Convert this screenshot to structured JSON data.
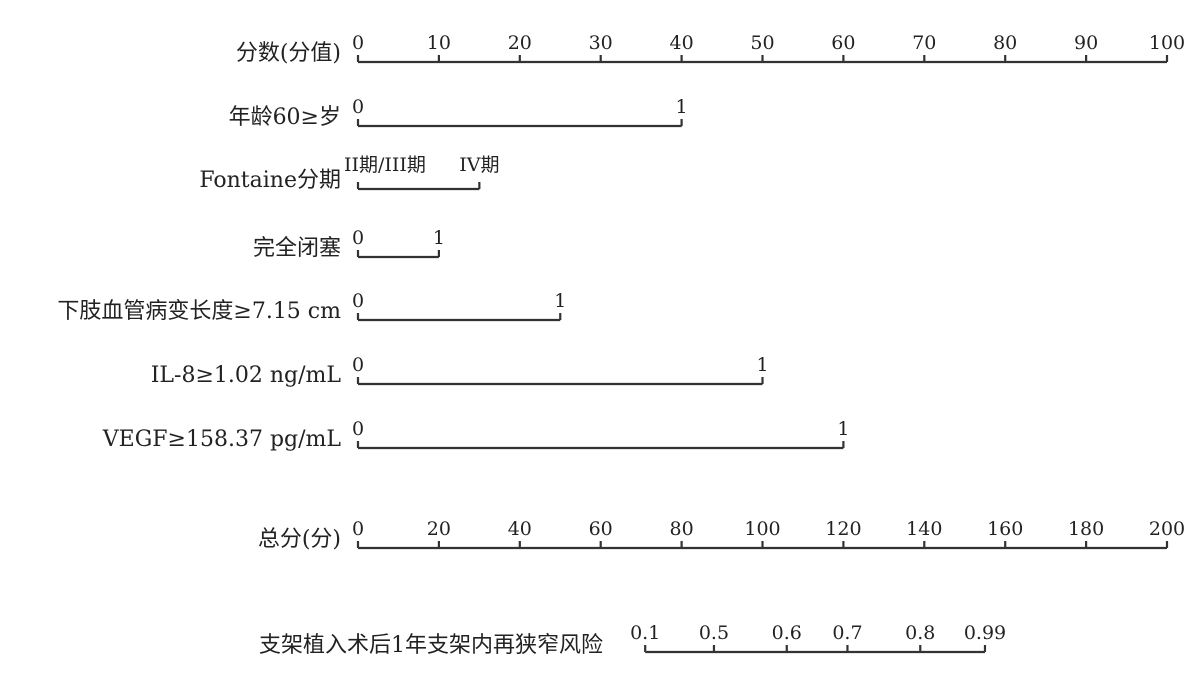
{
  "chart_data": {
    "type": "nomogram",
    "points_scale": {
      "label": "分数(分值)",
      "min": 0,
      "max": 100,
      "ticks": [
        0,
        10,
        20,
        30,
        40,
        50,
        60,
        70,
        80,
        90,
        100
      ],
      "tick_labels": [
        "0",
        "10",
        "20",
        "30",
        "40",
        "50",
        "60",
        "70",
        "80",
        "90",
        "100"
      ]
    },
    "predictors": [
      {
        "name": "年龄60≥岁",
        "levels": [
          {
            "label": "0",
            "points": 0
          },
          {
            "label": "1",
            "points": 40
          }
        ]
      },
      {
        "name": "Fontaine分期",
        "levels": [
          {
            "label": "II期/III期",
            "points": 0
          },
          {
            "label": "IV期",
            "points": 15
          }
        ]
      },
      {
        "name": "完全闭塞",
        "levels": [
          {
            "label": "0",
            "points": 0
          },
          {
            "label": "1",
            "points": 10
          }
        ]
      },
      {
        "name": "下肢血管病变长度≥7.15 cm",
        "levels": [
          {
            "label": "0",
            "points": 0
          },
          {
            "label": "1",
            "points": 25
          }
        ]
      },
      {
        "name": "IL-8≥1.02 ng/mL",
        "levels": [
          {
            "label": "0",
            "points": 0
          },
          {
            "label": "1",
            "points": 50
          }
        ]
      },
      {
        "name": "VEGF≥158.37 pg/mL",
        "levels": [
          {
            "label": "0",
            "points": 0
          },
          {
            "label": "1",
            "points": 60
          }
        ]
      }
    ],
    "total_points_scale": {
      "label": "总分(分)",
      "min": 0,
      "max": 200,
      "ticks": [
        0,
        20,
        40,
        60,
        80,
        100,
        120,
        140,
        160,
        180,
        200
      ],
      "tick_labels": [
        "0",
        "20",
        "40",
        "60",
        "80",
        "100",
        "120",
        "140",
        "160",
        "180",
        "200"
      ]
    },
    "risk_scale": {
      "label": "支架植入术后1年支架内再狭窄风险",
      "ticks": [
        {
          "label": "0.1",
          "total_points": 71
        },
        {
          "label": "0.5",
          "total_points": 88
        },
        {
          "label": "0.6",
          "total_points": 106
        },
        {
          "label": "0.7",
          "total_points": 121
        },
        {
          "label": "0.8",
          "total_points": 139
        },
        {
          "label": "0.99",
          "total_points": 155
        }
      ]
    },
    "grid": false,
    "legend": "none"
  }
}
